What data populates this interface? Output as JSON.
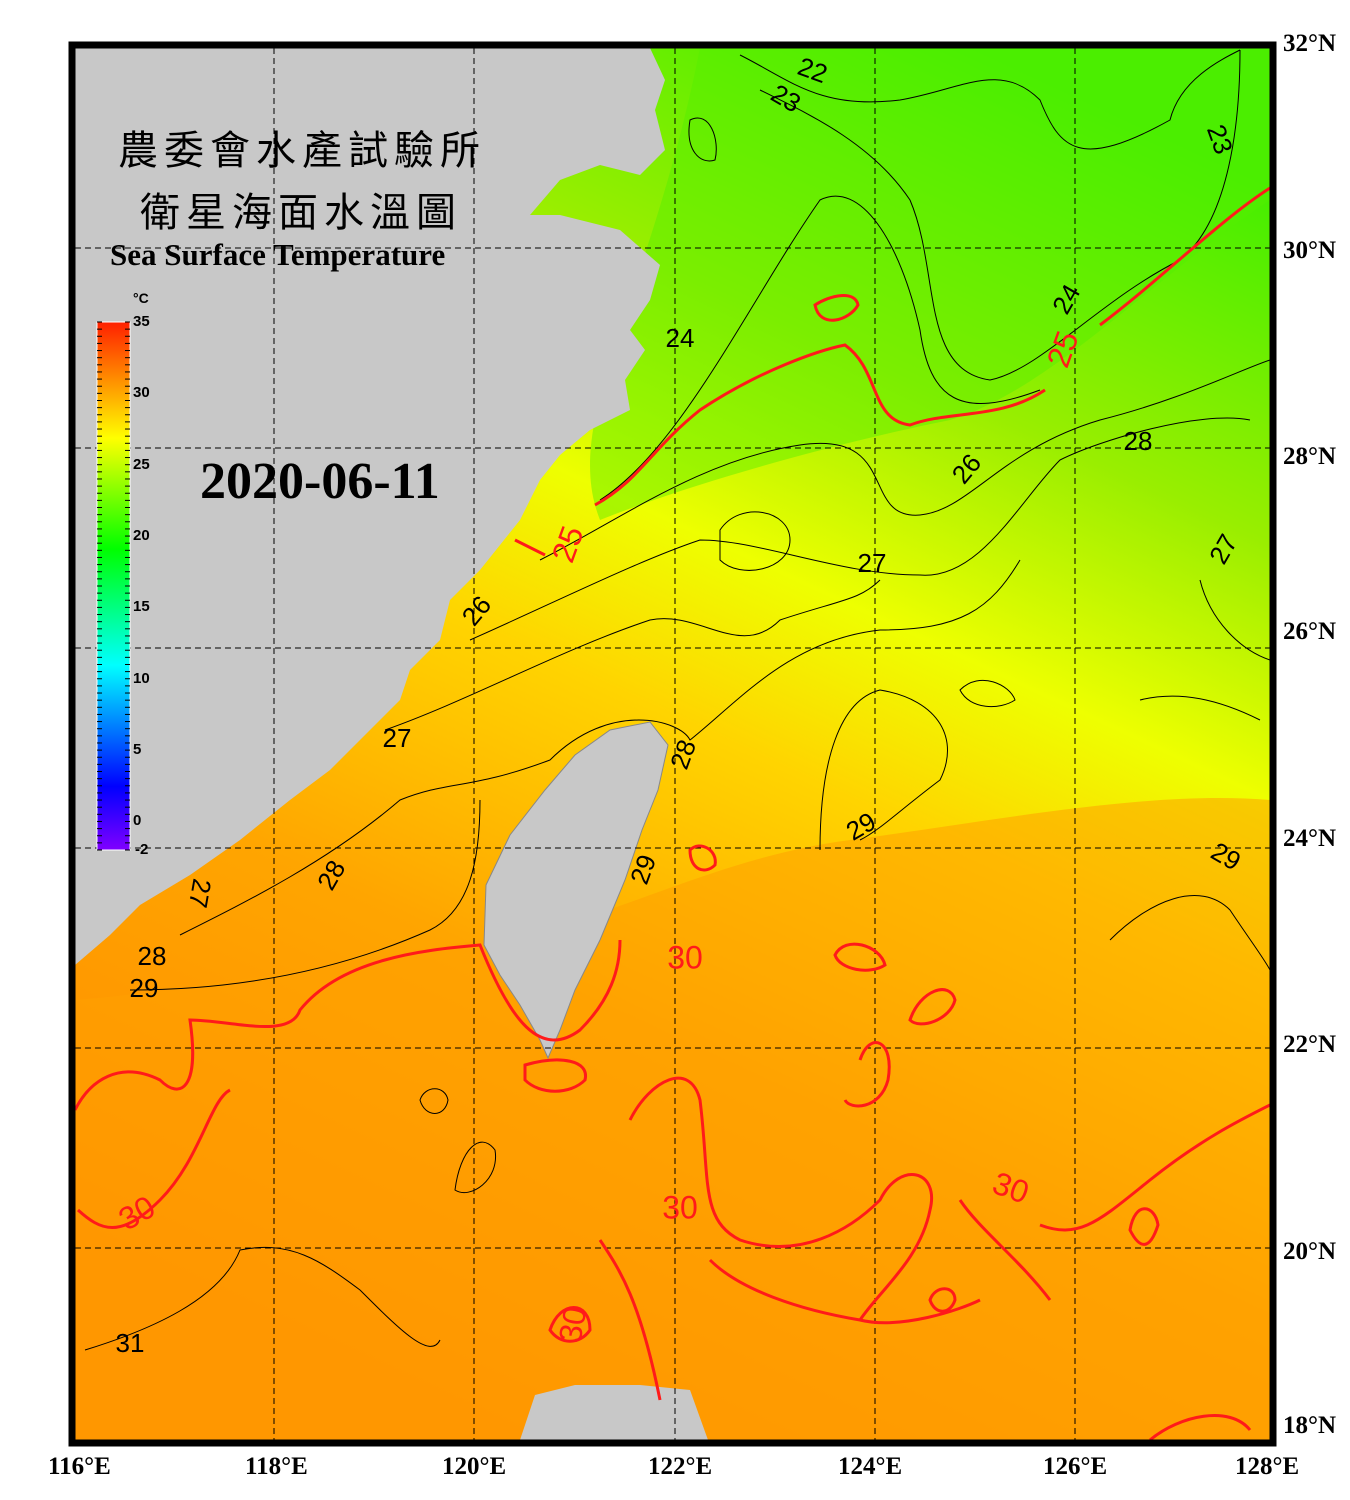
{
  "title": {
    "line1_cn": "農委會水產試驗所",
    "line2_cn": "衛星海面水溫圖",
    "english": "Sea Surface Temperature"
  },
  "date": "2020-06-11",
  "colorbar": {
    "unit": "°C",
    "range": [
      -2,
      35
    ],
    "tick_labels": [
      "35",
      "30",
      "25",
      "20",
      "15",
      "10",
      "5",
      "0",
      "-2"
    ],
    "colors": [
      "#8000ff",
      "#0000ff",
      "#00ffff",
      "#00ff00",
      "#ffff00",
      "#ff8000",
      "#ff2000"
    ]
  },
  "axes": {
    "lon_labels": [
      "116°E",
      "118°E",
      "120°E",
      "122°E",
      "124°E",
      "126°E",
      "128°E"
    ],
    "lat_labels": [
      "32°N",
      "30°N",
      "28°N",
      "26°N",
      "24°N",
      "22°N",
      "20°N",
      "18°N"
    ],
    "lon_range": [
      116,
      128
    ],
    "lat_range": [
      18,
      32
    ],
    "grid": "dashed every 2°"
  },
  "contour_labels": [
    "22",
    "23",
    "23",
    "24",
    "24",
    "25",
    "25",
    "26",
    "26",
    "27",
    "27",
    "27",
    "28",
    "28",
    "28",
    "28",
    "29",
    "29",
    "29",
    "29",
    "30",
    "30",
    "30",
    "30",
    "30",
    "31",
    "27"
  ],
  "colors": {
    "land": "#c8c8c8",
    "sea_warm": "#ff9a00",
    "sea_mid": "#ffee00",
    "sea_cool": "#55ee00",
    "contour_30_25": "#ff1a1a",
    "contour_other": "#000000"
  }
}
